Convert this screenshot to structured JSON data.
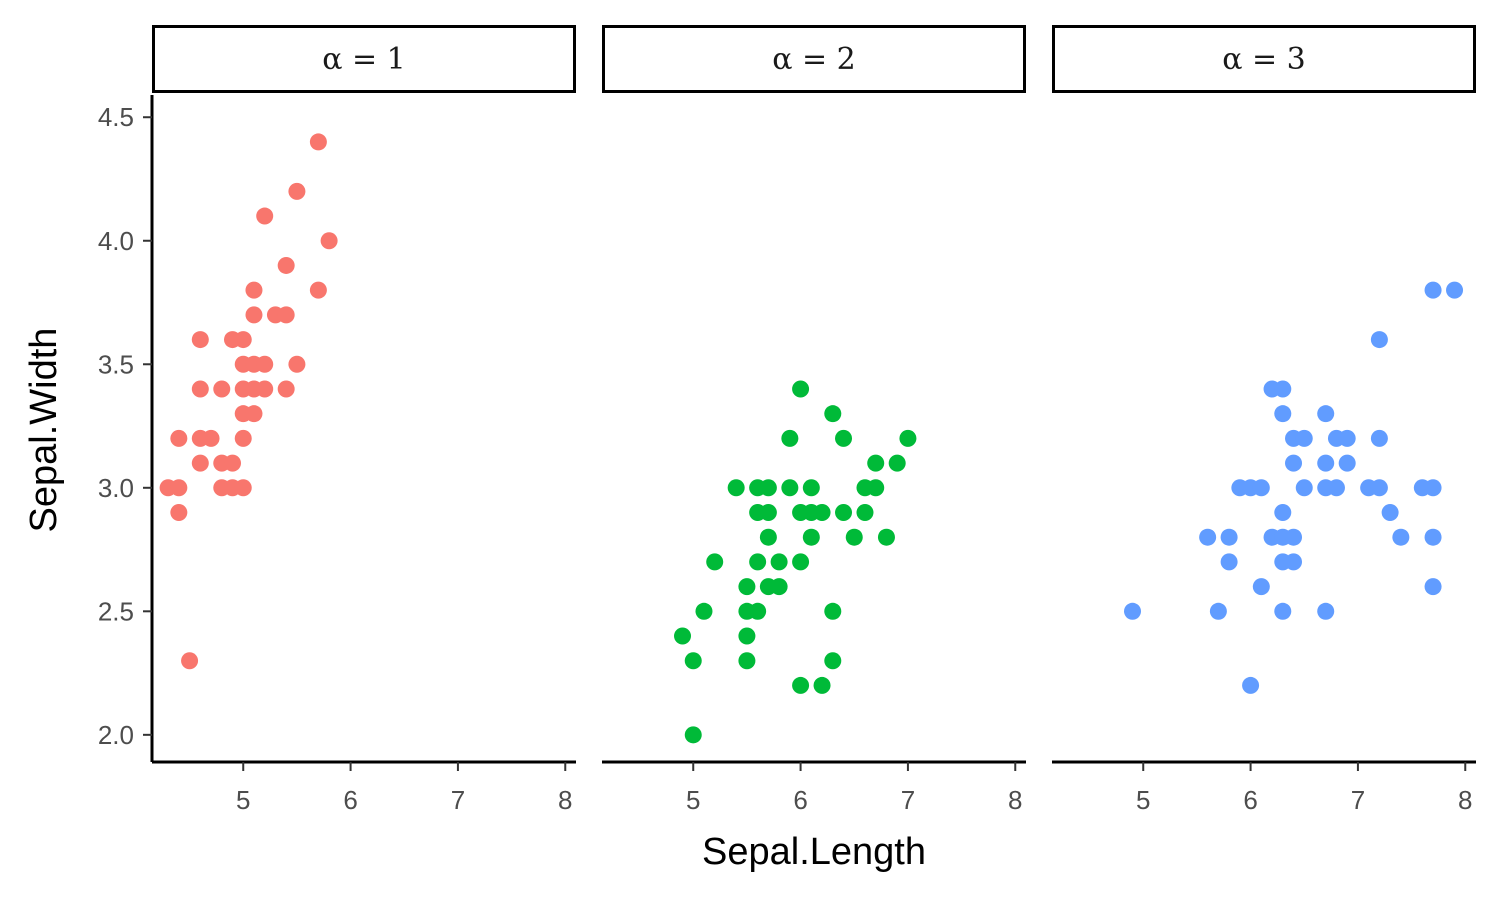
{
  "chart_data": {
    "type": "scatter",
    "xlabel": "Sepal.Length",
    "ylabel": "Sepal.Width",
    "xlim": [
      4.15,
      8.1
    ],
    "ylim": [
      1.89,
      4.59
    ],
    "x_ticks": [
      5,
      6,
      7,
      8
    ],
    "y_ticks": [
      2.0,
      2.5,
      3.0,
      3.5,
      4.0,
      4.5
    ],
    "y_tick_labels": [
      "2.0",
      "2.5",
      "3.0",
      "3.5",
      "4.0",
      "4.5"
    ],
    "grid": false,
    "legend": "none",
    "facets": [
      {
        "label": "α = 1",
        "color": "#F8766D",
        "points": [
          [
            4.3,
            3.0
          ],
          [
            4.4,
            3.0
          ],
          [
            4.4,
            2.9
          ],
          [
            4.4,
            3.2
          ],
          [
            4.5,
            2.3
          ],
          [
            4.6,
            3.6
          ],
          [
            4.6,
            3.4
          ],
          [
            4.6,
            3.2
          ],
          [
            4.6,
            3.1
          ],
          [
            4.7,
            3.2
          ],
          [
            4.8,
            3.4
          ],
          [
            4.8,
            3.1
          ],
          [
            4.8,
            3.0
          ],
          [
            4.9,
            3.6
          ],
          [
            4.9,
            3.1
          ],
          [
            4.9,
            3.0
          ],
          [
            5.0,
            3.6
          ],
          [
            5.0,
            3.5
          ],
          [
            5.0,
            3.4
          ],
          [
            5.0,
            3.3
          ],
          [
            5.0,
            3.2
          ],
          [
            5.0,
            3.0
          ],
          [
            5.1,
            3.8
          ],
          [
            5.1,
            3.7
          ],
          [
            5.1,
            3.5
          ],
          [
            5.1,
            3.4
          ],
          [
            5.1,
            3.3
          ],
          [
            5.2,
            4.1
          ],
          [
            5.2,
            3.5
          ],
          [
            5.2,
            3.4
          ],
          [
            5.3,
            3.7
          ],
          [
            5.4,
            3.9
          ],
          [
            5.4,
            3.7
          ],
          [
            5.4,
            3.4
          ],
          [
            5.5,
            4.2
          ],
          [
            5.5,
            3.5
          ],
          [
            5.7,
            4.4
          ],
          [
            5.7,
            3.8
          ],
          [
            5.8,
            4.0
          ]
        ]
      },
      {
        "label": "α = 2",
        "color": "#00BA38",
        "points": [
          [
            4.9,
            2.4
          ],
          [
            5.0,
            2.3
          ],
          [
            5.0,
            2.0
          ],
          [
            5.1,
            2.5
          ],
          [
            5.2,
            2.7
          ],
          [
            5.4,
            3.0
          ],
          [
            5.5,
            2.6
          ],
          [
            5.5,
            2.5
          ],
          [
            5.5,
            2.4
          ],
          [
            5.5,
            2.3
          ],
          [
            5.6,
            3.0
          ],
          [
            5.6,
            2.9
          ],
          [
            5.6,
            2.7
          ],
          [
            5.6,
            2.5
          ],
          [
            5.7,
            3.0
          ],
          [
            5.7,
            2.9
          ],
          [
            5.7,
            2.8
          ],
          [
            5.7,
            2.6
          ],
          [
            5.8,
            2.7
          ],
          [
            5.8,
            2.6
          ],
          [
            5.9,
            3.2
          ],
          [
            5.9,
            3.0
          ],
          [
            6.0,
            3.4
          ],
          [
            6.0,
            2.9
          ],
          [
            6.0,
            2.7
          ],
          [
            6.0,
            2.2
          ],
          [
            6.1,
            3.0
          ],
          [
            6.1,
            2.9
          ],
          [
            6.1,
            2.8
          ],
          [
            6.2,
            2.9
          ],
          [
            6.2,
            2.2
          ],
          [
            6.3,
            3.3
          ],
          [
            6.3,
            2.5
          ],
          [
            6.3,
            2.3
          ],
          [
            6.4,
            3.2
          ],
          [
            6.4,
            2.9
          ],
          [
            6.5,
            2.8
          ],
          [
            6.6,
            3.0
          ],
          [
            6.6,
            2.9
          ],
          [
            6.7,
            3.1
          ],
          [
            6.7,
            3.0
          ],
          [
            6.8,
            2.8
          ],
          [
            6.9,
            3.1
          ],
          [
            7.0,
            3.2
          ]
        ]
      },
      {
        "label": "α = 3",
        "color": "#619CFF",
        "points": [
          [
            4.9,
            2.5
          ],
          [
            5.6,
            2.8
          ],
          [
            5.7,
            2.5
          ],
          [
            5.8,
            2.8
          ],
          [
            5.8,
            2.7
          ],
          [
            5.9,
            3.0
          ],
          [
            6.0,
            3.0
          ],
          [
            6.0,
            2.2
          ],
          [
            6.1,
            3.0
          ],
          [
            6.1,
            2.6
          ],
          [
            6.2,
            3.4
          ],
          [
            6.2,
            2.8
          ],
          [
            6.3,
            3.4
          ],
          [
            6.3,
            3.3
          ],
          [
            6.3,
            2.9
          ],
          [
            6.3,
            2.8
          ],
          [
            6.3,
            2.7
          ],
          [
            6.3,
            2.5
          ],
          [
            6.4,
            3.2
          ],
          [
            6.4,
            3.1
          ],
          [
            6.4,
            2.8
          ],
          [
            6.4,
            2.7
          ],
          [
            6.5,
            3.2
          ],
          [
            6.5,
            3.0
          ],
          [
            6.7,
            3.3
          ],
          [
            6.7,
            3.1
          ],
          [
            6.7,
            3.0
          ],
          [
            6.7,
            2.5
          ],
          [
            6.8,
            3.2
          ],
          [
            6.8,
            3.0
          ],
          [
            6.9,
            3.2
          ],
          [
            6.9,
            3.1
          ],
          [
            7.1,
            3.0
          ],
          [
            7.2,
            3.6
          ],
          [
            7.2,
            3.2
          ],
          [
            7.2,
            3.0
          ],
          [
            7.3,
            2.9
          ],
          [
            7.4,
            2.8
          ],
          [
            7.6,
            3.0
          ],
          [
            7.7,
            3.8
          ],
          [
            7.7,
            3.0
          ],
          [
            7.7,
            2.8
          ],
          [
            7.7,
            2.6
          ],
          [
            7.9,
            3.8
          ]
        ]
      }
    ]
  }
}
